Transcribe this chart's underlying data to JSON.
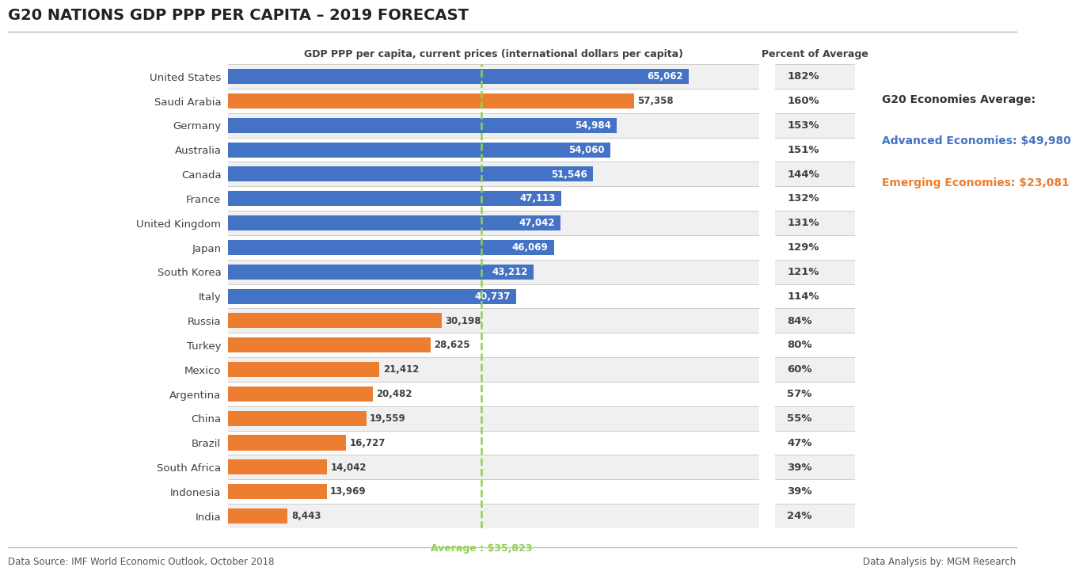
{
  "title": "G20 NATIONS GDP PPP PER CAPITA – 2019 FORECAST",
  "col_header": "GDP PPP per capita, current prices (international dollars per capita)",
  "col_header2": "Percent of Average",
  "countries": [
    "United States",
    "Saudi Arabia",
    "Germany",
    "Australia",
    "Canada",
    "France",
    "United Kingdom",
    "Japan",
    "South Korea",
    "Italy",
    "Russia",
    "Turkey",
    "Mexico",
    "Argentina",
    "China",
    "Brazil",
    "South Africa",
    "Indonesia",
    "India"
  ],
  "values": [
    65062,
    57358,
    54984,
    54060,
    51546,
    47113,
    47042,
    46069,
    43212,
    40737,
    30198,
    28625,
    21412,
    20482,
    19559,
    16727,
    14042,
    13969,
    8443
  ],
  "percents": [
    "182%",
    "160%",
    "153%",
    "151%",
    "144%",
    "132%",
    "131%",
    "129%",
    "121%",
    "114%",
    "84%",
    "80%",
    "60%",
    "57%",
    "55%",
    "47%",
    "39%",
    "39%",
    "24%"
  ],
  "colors": [
    "#4472C4",
    "#ED7D31",
    "#4472C4",
    "#4472C4",
    "#4472C4",
    "#4472C4",
    "#4472C4",
    "#4472C4",
    "#4472C4",
    "#4472C4",
    "#ED7D31",
    "#ED7D31",
    "#ED7D31",
    "#ED7D31",
    "#ED7D31",
    "#ED7D31",
    "#ED7D31",
    "#ED7D31",
    "#ED7D31"
  ],
  "is_advanced": [
    true,
    false,
    true,
    true,
    true,
    true,
    true,
    true,
    true,
    true,
    false,
    false,
    false,
    false,
    false,
    false,
    false,
    false,
    false
  ],
  "average": 35823,
  "advanced_avg": 49980,
  "emerging_avg": 23081,
  "blue_color": "#4472C4",
  "orange_color": "#ED7D31",
  "avg_line_color": "#92D050",
  "footer_left": "Data Source: IMF World Economic Outlook, October 2018",
  "footer_right": "Data Analysis by: MGM Research",
  "xlim_max": 75000,
  "bar_height": 0.62,
  "bg_color": "#F0F0F0",
  "white": "#FFFFFF",
  "text_dark": "#404040",
  "separator_color": "#CCCCCC"
}
